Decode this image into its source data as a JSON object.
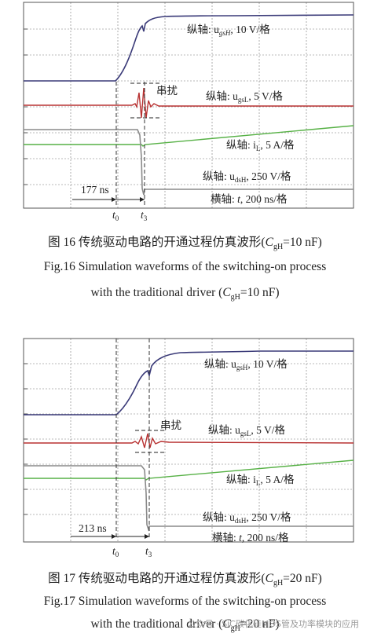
{
  "figures": [
    {
      "id": "fig16",
      "labels": {
        "ugsH": "纵轴: u",
        "ugsH_sub": "gsH",
        "ugsH_scale": ", 10 V/格",
        "ugsL": "纵轴: u",
        "ugsL_sub": "gsL",
        "ugsL_scale": ", 5 V/格",
        "iL": "纵轴: i",
        "iL_sub": "L",
        "iL_scale": ", 5 A/格",
        "udsH": "纵轴: u",
        "udsH_sub": "dsH",
        "udsH_scale": ", 250 V/格",
        "time": "横轴: ",
        "time_var": "t",
        "time_scale": ", 200 ns/格"
      },
      "crosstalk": "串扰",
      "interval": "177 ns",
      "t0": "t",
      "t0_sub": "0",
      "t3": "t",
      "t3_sub": "3",
      "caption_cn": {
        "prefix": "图 16   传统驱动电路的开通过程仿真波形(",
        "var": "C",
        "sub": "gH",
        "suffix": "=10 nF)"
      },
      "caption_en_1": "Fig.16    Simulation waveforms of the switching-on process",
      "caption_en_2": {
        "prefix": "with the traditional driver (",
        "var": "C",
        "sub": "gH",
        "suffix": "=10 nF)"
      }
    },
    {
      "id": "fig17",
      "labels": {
        "ugsH": "纵轴: u",
        "ugsH_sub": "gsH",
        "ugsH_scale": ", 10 V/格",
        "ugsL": "纵轴: u",
        "ugsL_sub": "gsL",
        "ugsL_scale": ", 5 V/格",
        "iL": "纵轴: i",
        "iL_sub": "L",
        "iL_scale": ", 5 A/格",
        "udsH": "纵轴: u",
        "udsH_sub": "dsH",
        "udsH_scale": ", 250 V/格",
        "time": "横轴: ",
        "time_var": "t",
        "time_scale": ", 200 ns/格"
      },
      "crosstalk": "串扰",
      "interval": "213 ns",
      "t0": "t",
      "t0_sub": "0",
      "t3": "t",
      "t3_sub": "3",
      "caption_cn": {
        "prefix": "图 17   传统驱动电路的开通过程仿真波形(",
        "var": "C",
        "sub": "gH",
        "suffix": "=20 nF)"
      },
      "caption_en_1": "Fig.17    Simulation waveforms of the switching-on process",
      "caption_en_2": {
        "prefix": "with the traditional driver (",
        "var": "C",
        "sub": "gH",
        "suffix": "=20 nF)"
      }
    }
  ],
  "watermark": "公众号 · SiC碳化硅MOS管及功率模块的应用",
  "colors": {
    "ugsH": "#3a3a78",
    "ugsL": "#b83232",
    "iL": "#57b146",
    "udsH": "#8a8a8a",
    "grid": "#666666"
  }
}
